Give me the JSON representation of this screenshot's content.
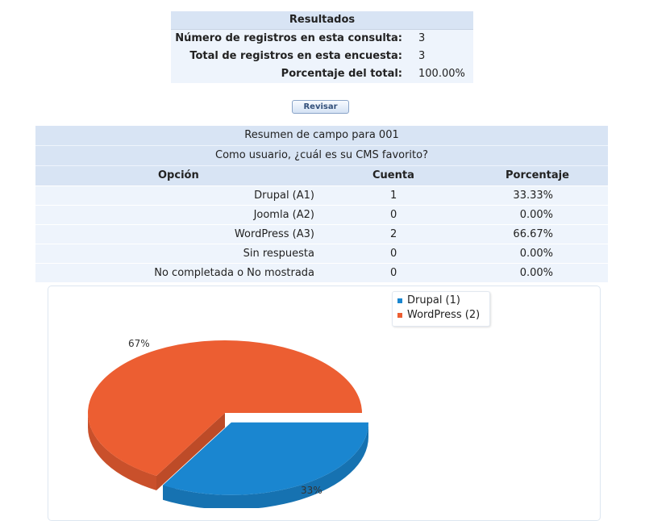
{
  "results": {
    "title": "Resultados",
    "rows": [
      {
        "label": "Número de registros en esta consulta:",
        "value": "3"
      },
      {
        "label": "Total de registros en esta encuesta:",
        "value": "3"
      },
      {
        "label": "Porcentaje del total:",
        "value": "100.00%"
      }
    ]
  },
  "revisar_label": "Revisar",
  "summary": {
    "title": "Resumen de campo para 001",
    "question": "Como  usuario, ¿cuál es su CMS favorito?",
    "headers": {
      "option": "Opción",
      "count": "Cuenta",
      "percent": "Porcentaje"
    },
    "rows": [
      {
        "option": "Drupal (A1)",
        "count": "1",
        "percent": "33.33%"
      },
      {
        "option": "Joomla (A2)",
        "count": "0",
        "percent": "0.00%"
      },
      {
        "option": "WordPress (A3)",
        "count": "2",
        "percent": "66.67%"
      },
      {
        "option": "Sin respuesta",
        "count": "0",
        "percent": "0.00%"
      },
      {
        "option": "No completada o No mostrada",
        "count": "0",
        "percent": "0.00%"
      }
    ]
  },
  "chart_data": {
    "type": "pie",
    "legend": [
      "Drupal (1)",
      "WordPress (2)"
    ],
    "legend_position": "top-right",
    "slices": [
      {
        "label": "Drupal",
        "value": 1,
        "percent_label": "33%",
        "color": "#1a86d0"
      },
      {
        "label": "WordPress",
        "value": 2,
        "percent_label": "67%",
        "color": "#ec5e32"
      }
    ]
  }
}
